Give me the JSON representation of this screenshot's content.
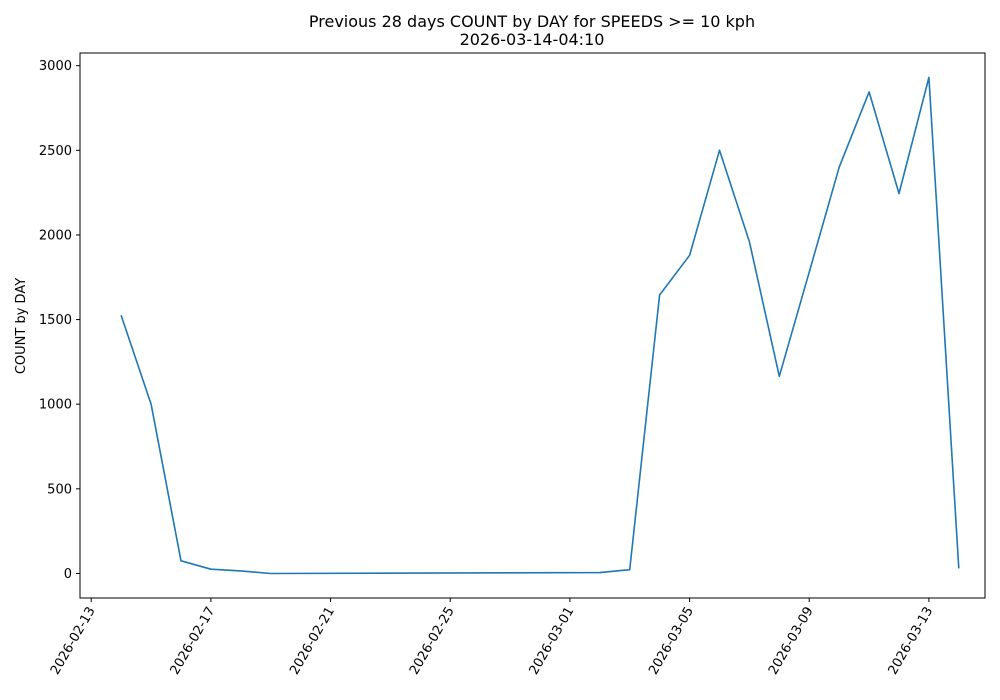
{
  "chart_data": {
    "type": "line",
    "title": "Previous 28 days COUNT by DAY for SPEEDS >= 10 kph",
    "subtitle": "2026-03-14-04:10",
    "xlabel": "",
    "ylabel": "COUNT by DAY",
    "xlim": [
      "2026-02-12T15:00",
      "2026-03-14T21:00"
    ],
    "ylim": [
      -145,
      3075
    ],
    "grid": false,
    "legend": "none",
    "line_color": "#1f77b4",
    "x_ticks": [
      "2026-02-13",
      "2026-02-17",
      "2026-02-21",
      "2026-02-25",
      "2026-03-01",
      "2026-03-05",
      "2026-03-09",
      "2026-03-13"
    ],
    "y_ticks": [
      0,
      500,
      1000,
      1500,
      2000,
      2500,
      3000
    ],
    "series": [
      {
        "points": [
          [
            "2026-02-14",
            1525
          ],
          [
            "2026-02-15",
            1000
          ],
          [
            "2026-02-16",
            75
          ],
          [
            "2026-02-17",
            25
          ],
          [
            "2026-02-18",
            15
          ],
          [
            "2026-02-19",
            0
          ],
          [
            "2026-03-02",
            5
          ],
          [
            "2026-03-03",
            22
          ],
          [
            "2026-03-04",
            1645
          ],
          [
            "2026-03-05",
            1880
          ],
          [
            "2026-03-06",
            2500
          ],
          [
            "2026-03-07",
            1960
          ],
          [
            "2026-03-08",
            1165
          ],
          [
            "2026-03-09",
            1780
          ],
          [
            "2026-03-10",
            2400
          ],
          [
            "2026-03-11",
            2845
          ],
          [
            "2026-03-12",
            2245
          ],
          [
            "2026-03-13",
            2930
          ],
          [
            "2026-03-14",
            30
          ]
        ]
      }
    ]
  }
}
